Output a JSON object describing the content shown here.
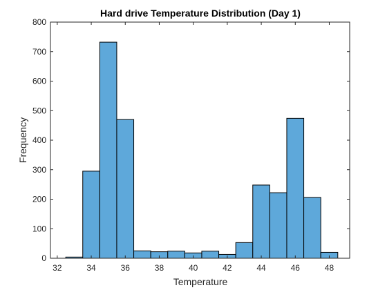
{
  "figure": {
    "title": "Hard drive Temperature Distribution (Day 1)"
  },
  "colors": {
    "bar_fill": "#5EA8DA",
    "bar_edge": "#000000",
    "axis": "#262626",
    "background": "#ffffff"
  },
  "chart_data": {
    "type": "bar",
    "title": "Hard drive Temperature Distribution (Day 1)",
    "xlabel": "Temperature",
    "ylabel": "Frequency",
    "xlim": [
      31.6,
      49.2
    ],
    "ylim": [
      0,
      800
    ],
    "x_ticks": [
      32,
      34,
      36,
      38,
      40,
      42,
      44,
      46,
      48
    ],
    "y_ticks": [
      0,
      100,
      200,
      300,
      400,
      500,
      600,
      700,
      800
    ],
    "bin_width": 1.0,
    "bins": [
      {
        "start": 32.5,
        "end": 33.5,
        "value": 4
      },
      {
        "start": 33.5,
        "end": 34.5,
        "value": 295
      },
      {
        "start": 34.5,
        "end": 35.5,
        "value": 732
      },
      {
        "start": 35.5,
        "end": 36.5,
        "value": 470
      },
      {
        "start": 36.5,
        "end": 37.5,
        "value": 25
      },
      {
        "start": 37.5,
        "end": 38.5,
        "value": 22
      },
      {
        "start": 38.5,
        "end": 39.5,
        "value": 24
      },
      {
        "start": 39.5,
        "end": 40.5,
        "value": 18
      },
      {
        "start": 40.5,
        "end": 41.5,
        "value": 24
      },
      {
        "start": 41.5,
        "end": 42.5,
        "value": 13
      },
      {
        "start": 42.5,
        "end": 43.5,
        "value": 53
      },
      {
        "start": 43.5,
        "end": 44.5,
        "value": 248
      },
      {
        "start": 44.5,
        "end": 45.5,
        "value": 222
      },
      {
        "start": 45.5,
        "end": 46.5,
        "value": 474
      },
      {
        "start": 46.5,
        "end": 47.5,
        "value": 206
      },
      {
        "start": 47.5,
        "end": 48.5,
        "value": 20
      }
    ],
    "grid": false,
    "legend": "none"
  }
}
